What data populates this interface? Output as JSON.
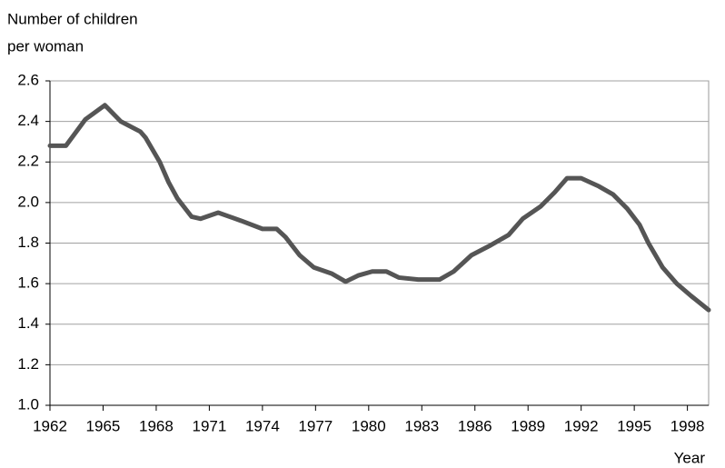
{
  "chart_data": {
    "type": "line",
    "ylabel_lines": [
      "Number of children",
      "per woman"
    ],
    "xlabel": "Year",
    "x": [
      1962,
      1962.9,
      1964,
      1965.1,
      1966,
      1967.1,
      1967.4,
      1968.2,
      1968.7,
      1969.2,
      1970,
      1970.5,
      1971.5,
      1972.8,
      1974,
      1974.8,
      1975.3,
      1976.1,
      1976.9,
      1977.9,
      1978.7,
      1979.4,
      1980.2,
      1981,
      1981.7,
      1982.8,
      1984,
      1984.8,
      1985.8,
      1986.9,
      1987.9,
      1988.7,
      1989.7,
      1990.5,
      1991.2,
      1992,
      1993,
      1993.8,
      1994.6,
      1995.3,
      1995.8,
      1996.6,
      1997.4,
      1998.2,
      1999.2
    ],
    "series": [
      {
        "color": "#555555",
        "values": [
          2.28,
          2.28,
          2.41,
          2.48,
          2.4,
          2.35,
          2.32,
          2.2,
          2.1,
          2.02,
          1.93,
          1.92,
          1.95,
          1.91,
          1.87,
          1.87,
          1.83,
          1.74,
          1.68,
          1.65,
          1.61,
          1.64,
          1.66,
          1.66,
          1.63,
          1.62,
          1.62,
          1.66,
          1.74,
          1.79,
          1.84,
          1.92,
          1.98,
          2.05,
          2.12,
          2.12,
          2.08,
          2.04,
          1.97,
          1.89,
          1.8,
          1.68,
          1.6,
          1.54,
          1.47
        ]
      }
    ],
    "xlim": [
      1962,
      1999.2
    ],
    "xticks": [
      1962,
      1965,
      1968,
      1971,
      1974,
      1977,
      1980,
      1983,
      1986,
      1989,
      1992,
      1995,
      1998
    ],
    "ylim": [
      1.0,
      2.6
    ],
    "yticks": [
      {
        "value": 1.0,
        "label": "1.0"
      },
      1.2,
      1.4,
      1.6,
      1.8,
      {
        "value": 2.0,
        "label": "2.0"
      },
      2.2,
      2.4,
      2.6
    ],
    "grid": true
  }
}
